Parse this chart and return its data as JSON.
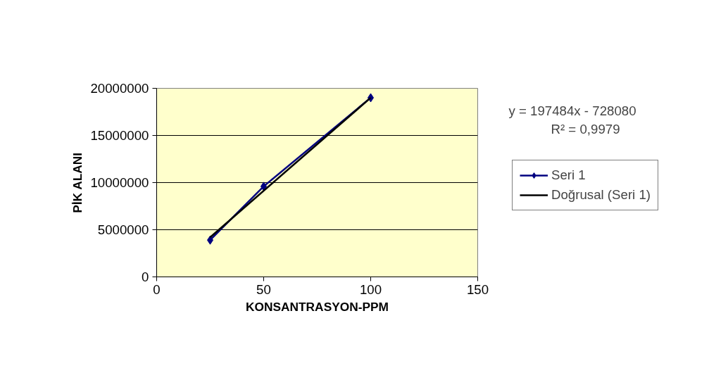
{
  "chart_data": {
    "type": "line",
    "xlabel": "KONSANTRASYON-PPM",
    "ylabel": "PİK ALANI",
    "xlim": [
      0,
      150
    ],
    "ylim": [
      0,
      20000000
    ],
    "xticks": [
      0,
      50,
      100,
      150
    ],
    "yticks": [
      0,
      5000000,
      10000000,
      15000000,
      20000000
    ],
    "grid": "y",
    "legend": "right",
    "annotations": [
      "y = 197484x - 728080",
      "R² = 0,9979"
    ],
    "series": [
      {
        "name": "Seri 1",
        "marker": "diamond",
        "color": "#000080",
        "x": [
          25,
          50,
          100
        ],
        "values": [
          3900000,
          9600000,
          19000000
        ]
      },
      {
        "name": "Doğrusal (Seri 1)",
        "marker": "none",
        "color": "#000000",
        "x": [
          25,
          100
        ],
        "values": [
          4200000,
          19000000
        ]
      }
    ]
  }
}
